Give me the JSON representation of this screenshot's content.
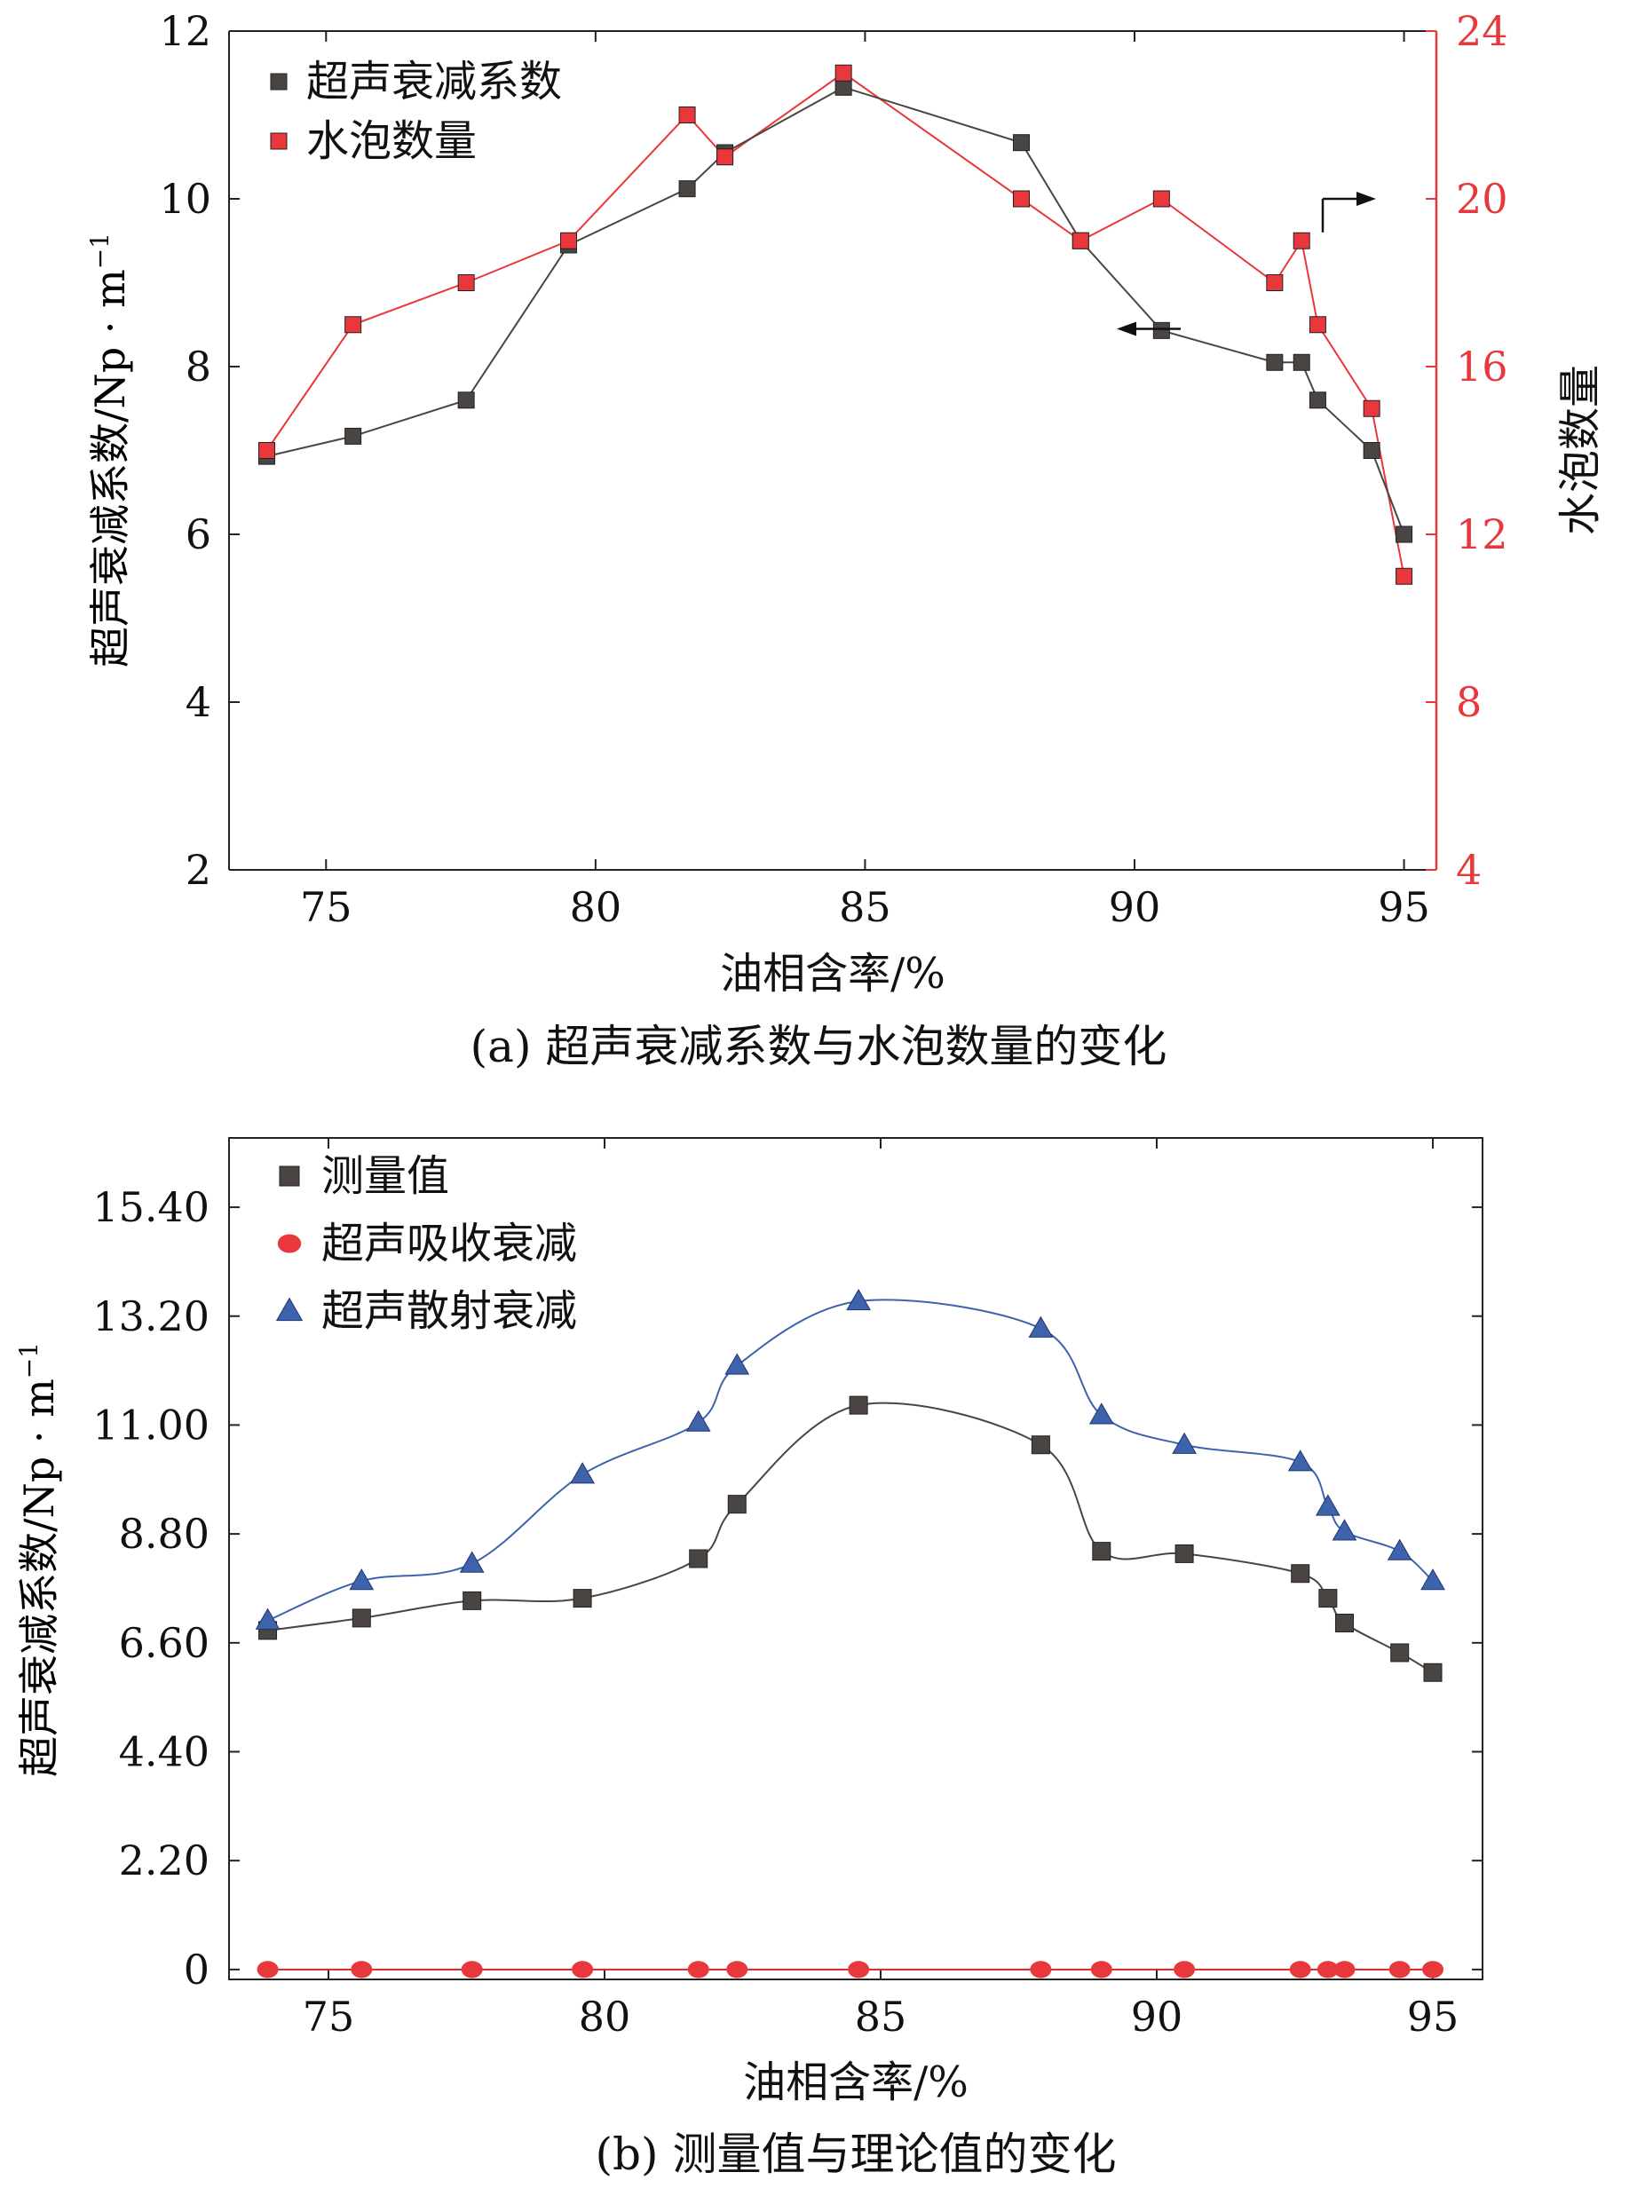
{
  "chart_data": [
    {
      "type": "line",
      "caption": "(a) 超声衰减系数与水泡数量的变化",
      "xlabel": "油相含率/%",
      "ylabel": "超声衰减系数/Np · m",
      "ylabel_sup": "−1",
      "y2label": "水泡数量",
      "xlim": [
        73.2,
        95.6
      ],
      "ylim": [
        2,
        12
      ],
      "y2lim": [
        4,
        24
      ],
      "xticks": [
        75,
        80,
        85,
        90,
        95
      ],
      "yticks": [
        2,
        4,
        6,
        8,
        10,
        12
      ],
      "y2ticks": [
        4,
        8,
        12,
        16,
        20,
        24
      ],
      "colors": {
        "attenuation": "#4a4542",
        "bubbles": "#e8383c",
        "axis_right": "#e8383c"
      },
      "legend_position": "top-left",
      "series": [
        {
          "name": "超声衰减系数",
          "axis": "left",
          "marker": "square",
          "x": [
            73.9,
            75.5,
            77.6,
            79.5,
            81.7,
            82.4,
            84.6,
            87.9,
            89.0,
            90.5,
            92.6,
            93.1,
            93.4,
            94.4,
            95.0
          ],
          "y": [
            6.93,
            7.17,
            7.6,
            9.45,
            10.12,
            10.55,
            11.33,
            10.67,
            9.5,
            8.43,
            8.05,
            8.05,
            7.6,
            7.0,
            6.0
          ]
        },
        {
          "name": "水泡数量",
          "axis": "right",
          "marker": "square",
          "x": [
            73.9,
            75.5,
            77.6,
            79.5,
            81.7,
            82.4,
            84.6,
            87.9,
            89.0,
            90.5,
            92.6,
            93.1,
            93.4,
            94.4,
            95.0
          ],
          "y": [
            14,
            17,
            18,
            19,
            22,
            21,
            23,
            20,
            19,
            20,
            18,
            19,
            17,
            15,
            11
          ]
        }
      ]
    },
    {
      "type": "line",
      "caption": "(b) 测量值与理论值的变化",
      "xlabel": "油相含率/%",
      "ylabel": "超声衰减系数/Np · m",
      "ylabel_sup": "−1",
      "xlim": [
        73.2,
        95.9
      ],
      "ylim": [
        -0.2,
        16.8
      ],
      "xticks": [
        75,
        80,
        85,
        90,
        95
      ],
      "yticks": [
        0,
        2.2,
        4.4,
        6.6,
        8.8,
        11.0,
        13.2,
        15.4
      ],
      "ytick_labels": [
        "0",
        "2.20",
        "4.40",
        "6.60",
        "8.80",
        "11.00",
        "13.20",
        "15.40"
      ],
      "colors": {
        "measured": "#4a4542",
        "absorption": "#e8383c",
        "scattering": "#3e63ad"
      },
      "legend_position": "top-left",
      "series": [
        {
          "name": "测量值",
          "marker": "square",
          "x": [
            73.9,
            75.6,
            77.6,
            79.6,
            81.7,
            82.4,
            84.6,
            87.9,
            89.0,
            90.5,
            92.6,
            93.1,
            93.4,
            94.4,
            95.0
          ],
          "y": [
            6.85,
            7.1,
            7.45,
            7.5,
            8.3,
            9.4,
            11.4,
            10.6,
            8.45,
            8.4,
            8.0,
            7.5,
            7.0,
            6.4,
            6.0
          ]
        },
        {
          "name": "超声吸收衰减",
          "marker": "circle",
          "x": [
            73.9,
            75.6,
            77.6,
            79.6,
            81.7,
            82.4,
            84.6,
            87.9,
            89.0,
            90.5,
            92.6,
            93.1,
            93.4,
            94.4,
            95.0
          ],
          "y": [
            0,
            0,
            0,
            0,
            0,
            0,
            0,
            0,
            0,
            0,
            0,
            0,
            0,
            0,
            0
          ]
        },
        {
          "name": "超声散射衰减",
          "marker": "triangle",
          "x": [
            73.9,
            75.6,
            77.6,
            79.6,
            81.7,
            82.4,
            84.6,
            87.9,
            89.0,
            90.5,
            92.6,
            93.1,
            93.4,
            94.4,
            95.0
          ],
          "y": [
            7.05,
            7.85,
            8.2,
            10.0,
            11.05,
            12.2,
            13.5,
            12.95,
            11.2,
            10.6,
            10.25,
            9.35,
            8.85,
            8.45,
            7.85
          ]
        }
      ]
    }
  ]
}
